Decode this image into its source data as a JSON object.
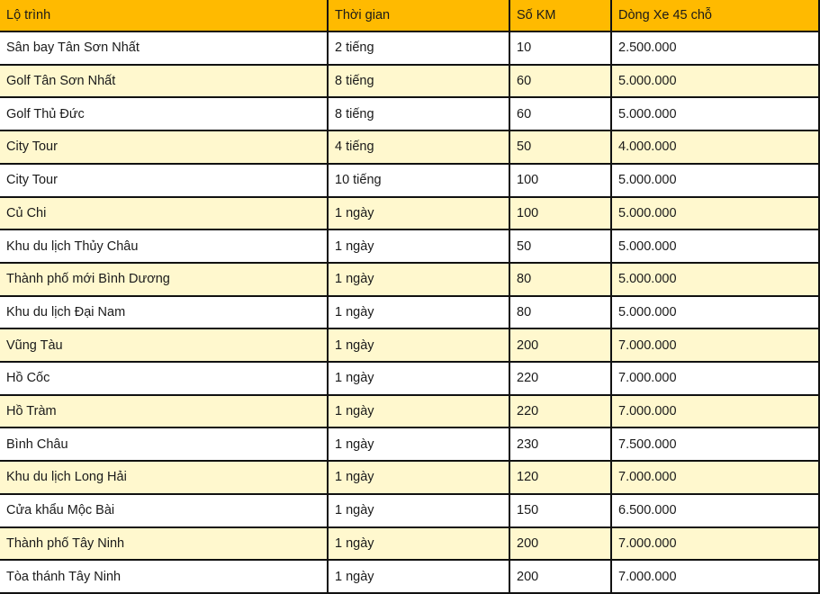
{
  "table": {
    "headers": [
      "Lộ trình",
      "Thời gian",
      "Số KM",
      "Dòng Xe 45 chỗ"
    ],
    "rows": [
      [
        "Sân bay Tân Sơn Nhất",
        "2 tiếng",
        "10",
        "2.500.000"
      ],
      [
        "Golf Tân Sơn Nhất",
        "8 tiếng",
        "60",
        "5.000.000"
      ],
      [
        "Golf Thủ Đức",
        "8 tiếng",
        "60",
        "5.000.000"
      ],
      [
        "City Tour",
        "4 tiếng",
        "50",
        "4.000.000"
      ],
      [
        "City Tour",
        "10 tiếng",
        "100",
        "5.000.000"
      ],
      [
        "Củ Chi",
        "1 ngày",
        "100",
        "5.000.000"
      ],
      [
        "Khu du lịch Thủy Châu",
        "1 ngày",
        "50",
        "5.000.000"
      ],
      [
        "Thành phố mới Bình Dương",
        "1 ngày",
        "80",
        "5.000.000"
      ],
      [
        "Khu du lịch Đại Nam",
        "1 ngày",
        "80",
        "5.000.000"
      ],
      [
        "Vũng Tàu",
        "1 ngày",
        "200",
        "7.000.000"
      ],
      [
        "Hồ Cốc",
        "1 ngày",
        "220",
        "7.000.000"
      ],
      [
        "Hồ Tràm",
        "1 ngày",
        "220",
        "7.000.000"
      ],
      [
        "Bình Châu",
        "1 ngày",
        "230",
        "7.500.000"
      ],
      [
        "Khu du lịch Long Hải",
        "1 ngày",
        "120",
        "7.000.000"
      ],
      [
        "Cửa khẩu Mộc Bài",
        "1 ngày",
        "150",
        "6.500.000"
      ],
      [
        "Thành phố Tây Ninh",
        "1 ngày",
        "200",
        "7.000.000"
      ],
      [
        "Tòa thánh Tây Ninh",
        "1 ngày",
        "200",
        "7.000.000"
      ]
    ]
  },
  "colors": {
    "header": "#FFBA00",
    "alt_row": "#FFF8CE",
    "border": "#111111"
  }
}
